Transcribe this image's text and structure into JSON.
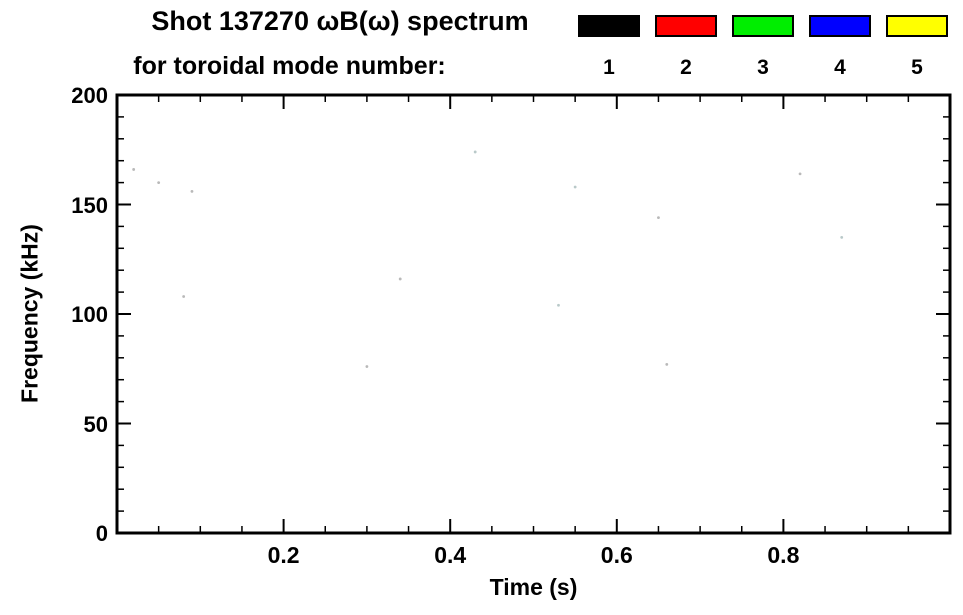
{
  "title_line1": "Shot 137270 ωB(ω) spectrum",
  "title_line2": "for toroidal mode number:",
  "legend": {
    "items": [
      {
        "label": "1",
        "color": "#000000"
      },
      {
        "label": "2",
        "color": "#ff0000"
      },
      {
        "label": "3",
        "color": "#00ee00"
      },
      {
        "label": "4",
        "color": "#0000ff"
      },
      {
        "label": "5",
        "color": "#ffff00"
      }
    ]
  },
  "chart_data": {
    "type": "scatter",
    "title": "Shot 137270 ωB(ω) spectrum for toroidal mode number: 1 2 3 4 5",
    "xlabel": "Time (s)",
    "ylabel": "Frequency (kHz)",
    "xlim": [
      0,
      1.0
    ],
    "ylim": [
      0,
      200
    ],
    "x_ticks": [
      0.2,
      0.4,
      0.6,
      0.8
    ],
    "y_ticks": [
      0,
      50,
      100,
      150,
      200
    ],
    "x_minor_step": 0.05,
    "y_minor_step": 10,
    "grid": false,
    "legend_position": "top-right",
    "points": [
      {
        "t": 0.02,
        "f": 166,
        "color": "#b9b9b9"
      },
      {
        "t": 0.05,
        "f": 160,
        "color": "#b9b9b9"
      },
      {
        "t": 0.09,
        "f": 156,
        "color": "#b9b9b9"
      },
      {
        "t": 0.08,
        "f": 108,
        "color": "#b9b9b9"
      },
      {
        "t": 0.3,
        "f": 76,
        "color": "#b9b9b9"
      },
      {
        "t": 0.34,
        "f": 116,
        "color": "#b9b9b9"
      },
      {
        "t": 0.43,
        "f": 174,
        "color": "#b9c9c9"
      },
      {
        "t": 0.53,
        "f": 104,
        "color": "#b9c9c9"
      },
      {
        "t": 0.55,
        "f": 158,
        "color": "#b9c9c9"
      },
      {
        "t": 0.65,
        "f": 144,
        "color": "#b9b9b9"
      },
      {
        "t": 0.66,
        "f": 77,
        "color": "#b9b9b9"
      },
      {
        "t": 0.82,
        "f": 164,
        "color": "#b9b9b9"
      },
      {
        "t": 0.87,
        "f": 135,
        "color": "#b9c9c9"
      }
    ]
  }
}
